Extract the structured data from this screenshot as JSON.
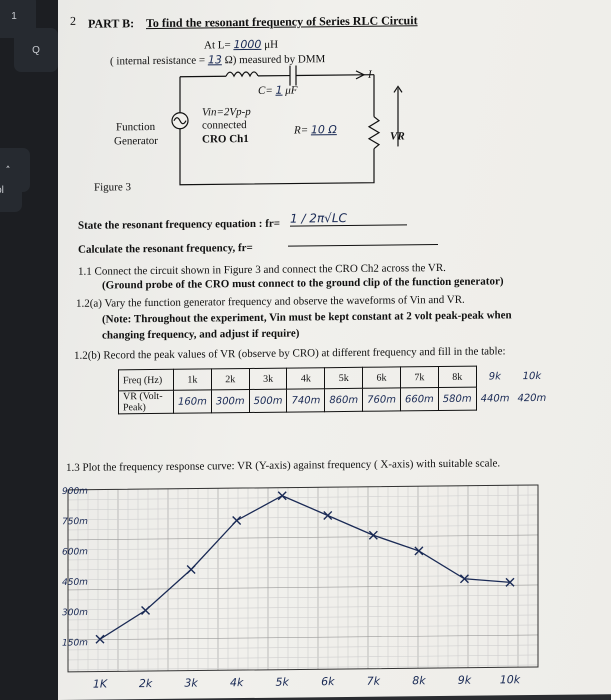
{
  "header": {
    "page_number": "2",
    "part_title": "PART B:",
    "part_heading": "To find the resonant frequency of Series RLC Circuit"
  },
  "circuit": {
    "inductance_prefix": "At L=",
    "inductance_value": "1000",
    "inductance_unit": "μH",
    "internal_resistance_prefix": "( internal resistance =",
    "internal_resistance_value": "13",
    "internal_resistance_suffix": "Ω) measured by DMM",
    "capacitance_prefix": "C=",
    "capacitance_value": "1",
    "capacitance_unit": "μF",
    "current_label": "I",
    "vin_label": "Vin=2Vp-p",
    "vin_label2": "connected",
    "cro_label": "CRO Ch1",
    "function_label": "Function",
    "generator_label": "Generator",
    "resistance_prefix": "R=",
    "resistance_value": "10 Ω",
    "vr_label": "VR",
    "figure_caption": "Figure 3"
  },
  "questions": {
    "resonant_equation": "State the resonant frequency equation : fr=",
    "resonant_equation_answer": "1 / 2π√LC",
    "resonant_calc": "Calculate the resonant frequency, fr=",
    "step_1_1": "1.1  Connect the circuit shown in Figure 3 and connect the CRO Ch2 across the VR.",
    "step_1_1_note": "(Ground probe of the CRO must connect to the ground clip of the function generator)",
    "step_1_2a": "1.2(a)  Vary the function generator frequency and observe the waveforms of Vin and VR.",
    "step_1_2a_note": "(Note: Throughout the experiment, Vin must be kept constant at 2 volt peak-peak when",
    "step_1_2a_note2": "changing frequency, and adjust if require)",
    "step_1_2b": "1.2(b)  Record the peak values of VR (observe by CRO) at different frequency and fill in the table:",
    "step_1_3": "1.3  Plot the frequency response curve: VR (Y-axis) against frequency ( X-axis) with suitable scale."
  },
  "table": {
    "row1_label": "Freq (Hz)",
    "row2_label": "VR (Volt-Peak)",
    "frequencies": [
      "1k",
      "2k",
      "3k",
      "4k",
      "5k",
      "6k",
      "7k",
      "8k",
      "9k",
      "10k"
    ],
    "voltages": [
      "160m",
      "300m",
      "500m",
      "740m",
      "860m",
      "760m",
      "660m",
      "580m",
      "440m",
      "420m"
    ]
  },
  "chart_data": {
    "type": "line",
    "x": [
      "1K",
      "2k",
      "3k",
      "4k",
      "5k",
      "6k",
      "7k",
      "8k",
      "9k",
      "10k"
    ],
    "y_ticks": [
      "150m",
      "300m",
      "450m",
      "600m",
      "750m",
      "900m"
    ],
    "series": [
      {
        "values": [
          160,
          300,
          500,
          740,
          860,
          760,
          660,
          580,
          440,
          420
        ]
      }
    ],
    "ylim": [
      0,
      900
    ]
  }
}
